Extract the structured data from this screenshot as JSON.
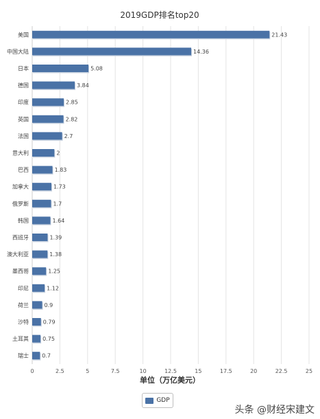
{
  "chart_data": {
    "type": "bar",
    "orientation": "horizontal",
    "title": "2019GDP排名top20",
    "xlabel": "单位（万亿美元）",
    "ylabel": "",
    "xlim": [
      0,
      25
    ],
    "xticks": [
      "0",
      "2.5",
      "5",
      "7.5",
      "10",
      "12.5",
      "15",
      "17.5",
      "20",
      "22.5",
      "25"
    ],
    "grid": true,
    "legend_position": "bottom",
    "bar_color": "#4a72a6",
    "categories": [
      "美国",
      "中国大陆",
      "日本",
      "德国",
      "印度",
      "英国",
      "法国",
      "意大利",
      "巴西",
      "加拿大",
      "俄罗斯",
      "韩国",
      "西班牙",
      "澳大利亚",
      "墨西哥",
      "印尼",
      "荷兰",
      "沙特",
      "土耳其",
      "瑞士"
    ],
    "value_labels": [
      "21.43",
      "14.36",
      "5.08",
      "3.84",
      "2.85",
      "2.82",
      "2.7",
      "2",
      "1.83",
      "1.73",
      "1.7",
      "1.64",
      "1.39",
      "1.38",
      "1.25",
      "1.12",
      "0.9",
      "0.79",
      "0.75",
      "0.7"
    ],
    "series": [
      {
        "name": "GDP",
        "values": [
          21.43,
          14.36,
          5.08,
          3.84,
          2.85,
          2.82,
          2.7,
          2,
          1.83,
          1.73,
          1.7,
          1.64,
          1.39,
          1.38,
          1.25,
          1.12,
          0.9,
          0.79,
          0.75,
          0.7
        ]
      }
    ]
  },
  "legend": {
    "label": "GDP"
  },
  "watermark": "头条 @财经宋建文"
}
